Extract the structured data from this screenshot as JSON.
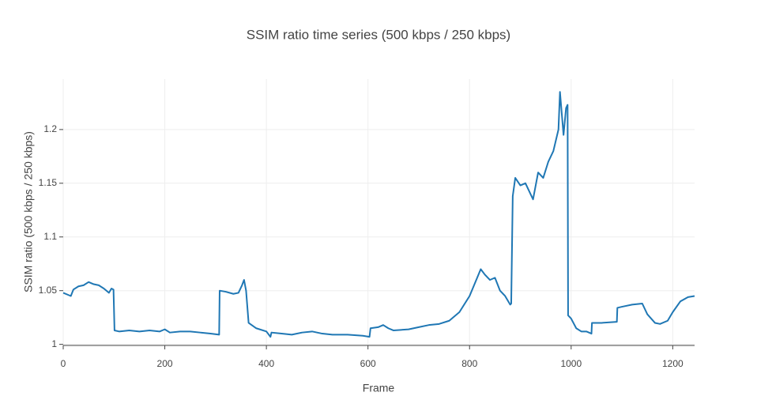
{
  "chart_data": {
    "type": "line",
    "title": "SSIM ratio time series (500 kbps / 250 kbps)",
    "x_label": "Frame",
    "y_label": "SSIM ratio (500 kbps / 250 kbps)",
    "xlim": [
      0,
      1243
    ],
    "ylim": [
      0.999,
      1.247
    ],
    "xticks": [
      0,
      200,
      400,
      600,
      800,
      1000,
      1200
    ],
    "yticks": [
      1,
      1.05,
      1.1,
      1.15,
      1.2
    ],
    "grid": true,
    "series": [
      {
        "name": "SSIM ratio",
        "color": "#1f77b4",
        "x": [
          0,
          10,
          15,
          20,
          30,
          40,
          50,
          55,
          60,
          70,
          80,
          90,
          95,
          99,
          101,
          110,
          130,
          150,
          170,
          190,
          200,
          210,
          230,
          250,
          270,
          290,
          307,
          308,
          320,
          335,
          345,
          352,
          356,
          360,
          365,
          380,
          400,
          408,
          410,
          430,
          450,
          470,
          490,
          510,
          530,
          560,
          590,
          603,
          605,
          620,
          630,
          640,
          650,
          680,
          700,
          720,
          740,
          760,
          780,
          800,
          815,
          822,
          830,
          840,
          850,
          860,
          870,
          880,
          882,
          885,
          890,
          900,
          910,
          920,
          925,
          935,
          945,
          955,
          965,
          975,
          978,
          985,
          990,
          993,
          994,
          1000,
          1010,
          1020,
          1030,
          1040,
          1041,
          1060,
          1090,
          1091,
          1100,
          1120,
          1140,
          1150,
          1165,
          1175,
          1190,
          1200,
          1215,
          1230,
          1243
        ],
        "values": [
          1.048,
          1.046,
          1.045,
          1.051,
          1.054,
          1.055,
          1.058,
          1.057,
          1.056,
          1.055,
          1.052,
          1.048,
          1.052,
          1.051,
          1.013,
          1.012,
          1.013,
          1.012,
          1.013,
          1.012,
          1.014,
          1.011,
          1.012,
          1.012,
          1.011,
          1.01,
          1.009,
          1.05,
          1.049,
          1.047,
          1.048,
          1.055,
          1.06,
          1.05,
          1.02,
          1.015,
          1.012,
          1.007,
          1.011,
          1.01,
          1.009,
          1.011,
          1.012,
          1.01,
          1.009,
          1.009,
          1.008,
          1.007,
          1.015,
          1.016,
          1.018,
          1.015,
          1.013,
          1.014,
          1.016,
          1.018,
          1.019,
          1.022,
          1.03,
          1.045,
          1.062,
          1.07,
          1.065,
          1.06,
          1.062,
          1.05,
          1.045,
          1.037,
          1.038,
          1.138,
          1.155,
          1.148,
          1.15,
          1.14,
          1.135,
          1.16,
          1.155,
          1.17,
          1.18,
          1.2,
          1.235,
          1.195,
          1.22,
          1.223,
          1.027,
          1.024,
          1.015,
          1.012,
          1.012,
          1.01,
          1.02,
          1.02,
          1.021,
          1.034,
          1.035,
          1.037,
          1.038,
          1.028,
          1.02,
          1.019,
          1.022,
          1.03,
          1.04,
          1.044,
          1.045
        ]
      }
    ]
  }
}
